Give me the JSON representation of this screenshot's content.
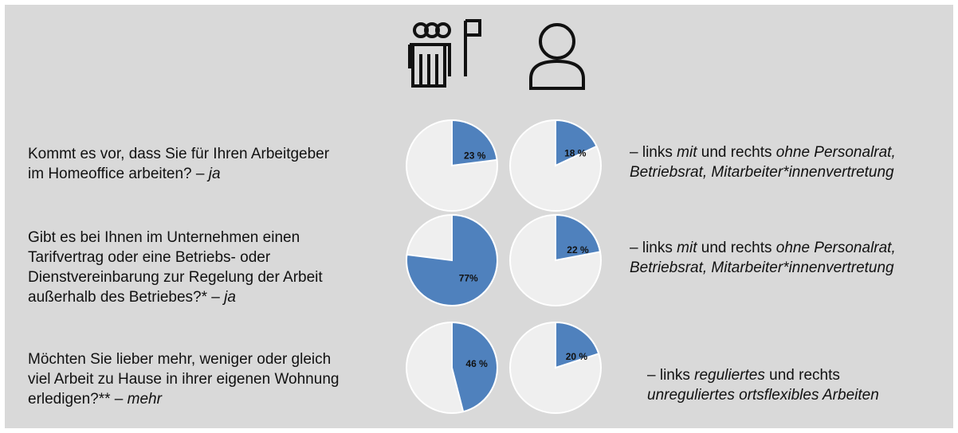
{
  "chart_data": [
    {
      "type": "pie",
      "values": [
        23
      ],
      "value_labels": [
        "23 %"
      ],
      "color": "#4f81bd"
    },
    {
      "type": "pie",
      "values": [
        18
      ],
      "value_labels": [
        "18 %"
      ],
      "color": "#4f81bd"
    },
    {
      "type": "pie",
      "values": [
        77
      ],
      "value_labels": [
        "77%"
      ],
      "color": "#4f81bd"
    },
    {
      "type": "pie",
      "values": [
        22
      ],
      "value_labels": [
        "22 %"
      ],
      "color": "#4f81bd"
    },
    {
      "type": "pie",
      "values": [
        46
      ],
      "value_labels": [
        "46 %"
      ],
      "color": "#4f81bd"
    },
    {
      "type": "pie",
      "values": [
        20
      ],
      "value_labels": [
        "20 %"
      ],
      "color": "#4f81bd"
    }
  ],
  "rows": [
    {
      "question": [
        [
          {
            "text": "Kommt es vor, dass Sie für Ihren Arbeitgeber"
          }
        ],
        [
          {
            "text": "im Homeoffice arbeiten? – "
          },
          {
            "text": "ja",
            "italic": true
          }
        ]
      ],
      "note": [
        [
          {
            "text": "– links "
          },
          {
            "text": "mit",
            "italic": true
          },
          {
            "text": " und rechts "
          },
          {
            "text": "ohne Personalrat,",
            "italic": true
          }
        ],
        [
          {
            "text": "Betriebsrat, Mitarbeiter*innenvertretung",
            "italic": true
          }
        ]
      ]
    },
    {
      "question": [
        [
          {
            "text": "Gibt es bei Ihnen im Unternehmen einen"
          }
        ],
        [
          {
            "text": "Tarifvertrag oder eine Betriebs- oder"
          }
        ],
        [
          {
            "text": "Dienstvereinbarung zur Regelung der Arbeit"
          }
        ],
        [
          {
            "text": "außerhalb des Betriebes?* – "
          },
          {
            "text": "ja",
            "italic": true
          }
        ]
      ],
      "note": [
        [
          {
            "text": "– links "
          },
          {
            "text": "mit",
            "italic": true
          },
          {
            "text": " und rechts "
          },
          {
            "text": "ohne Personalrat,",
            "italic": true
          }
        ],
        [
          {
            "text": "Betriebsrat, Mitarbeiter*innenvertretung",
            "italic": true
          }
        ]
      ]
    },
    {
      "question": [
        [
          {
            "text": "Möchten Sie lieber mehr, weniger oder gleich"
          }
        ],
        [
          {
            "text": "viel Arbeit zu Hause in ihrer eigenen Wohnung"
          }
        ],
        [
          {
            "text": "erledigen?** – "
          },
          {
            "text": "mehr",
            "italic": true
          }
        ]
      ],
      "note": [
        [
          {
            "text": "– links "
          },
          {
            "text": "reguliertes",
            "italic": true
          },
          {
            "text": " und rechts"
          }
        ],
        [
          {
            "text": "unreguliertes ortsflexibles Arbeiten",
            "italic": true
          }
        ]
      ]
    }
  ]
}
